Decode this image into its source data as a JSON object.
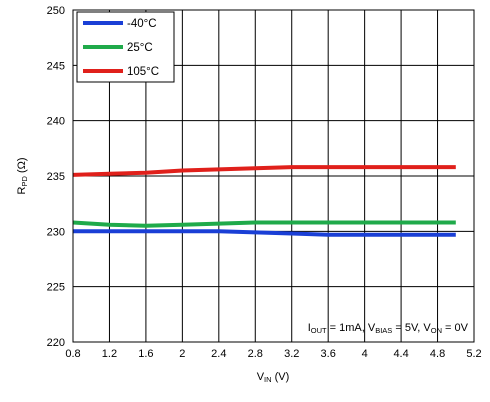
{
  "chart_data": {
    "type": "line",
    "xlabel": {
      "main": "V",
      "sub": "IN",
      "unit": " (V)"
    },
    "ylabel": {
      "main": "R",
      "sub": "PD",
      "unit": " (Ω)"
    },
    "xlim": [
      0.8,
      5.2
    ],
    "ylim": [
      220,
      250
    ],
    "xticks": [
      "0.8",
      "1.2",
      "1.6",
      "2",
      "2.4",
      "2.8",
      "3.2",
      "3.6",
      "4",
      "4.4",
      "4.8",
      "5.2"
    ],
    "yticks": [
      "220",
      "225",
      "230",
      "235",
      "240",
      "245",
      "250"
    ],
    "grid": true,
    "legend_position": "top-left",
    "annotation": {
      "p1": "I",
      "s1": "OUT",
      "p2": " = 1mA, V",
      "s2": "BIAS",
      "p3": " = 5V, V",
      "s3": "ON",
      "p4": " = 0V"
    },
    "series": [
      {
        "name": "-40°C",
        "color": "#1a3fd6",
        "x": [
          0.8,
          1.2,
          1.6,
          2.0,
          2.4,
          2.8,
          3.2,
          3.6,
          4.0,
          4.4,
          4.8,
          5.0
        ],
        "y": [
          230.0,
          230.0,
          230.0,
          230.0,
          230.0,
          229.9,
          229.8,
          229.7,
          229.7,
          229.7,
          229.7,
          229.7
        ]
      },
      {
        "name": "25°C",
        "color": "#1faa4a",
        "x": [
          0.8,
          1.2,
          1.6,
          2.0,
          2.4,
          2.8,
          3.2,
          3.6,
          4.0,
          4.4,
          4.8,
          5.0
        ],
        "y": [
          230.8,
          230.6,
          230.5,
          230.6,
          230.7,
          230.8,
          230.8,
          230.8,
          230.8,
          230.8,
          230.8,
          230.8
        ]
      },
      {
        "name": "105°C",
        "color": "#e0201b",
        "x": [
          0.8,
          1.2,
          1.6,
          2.0,
          2.4,
          2.8,
          3.2,
          3.6,
          4.0,
          4.4,
          4.8,
          5.0
        ],
        "y": [
          235.1,
          235.2,
          235.3,
          235.5,
          235.6,
          235.7,
          235.8,
          235.8,
          235.8,
          235.8,
          235.8,
          235.8
        ]
      }
    ]
  }
}
